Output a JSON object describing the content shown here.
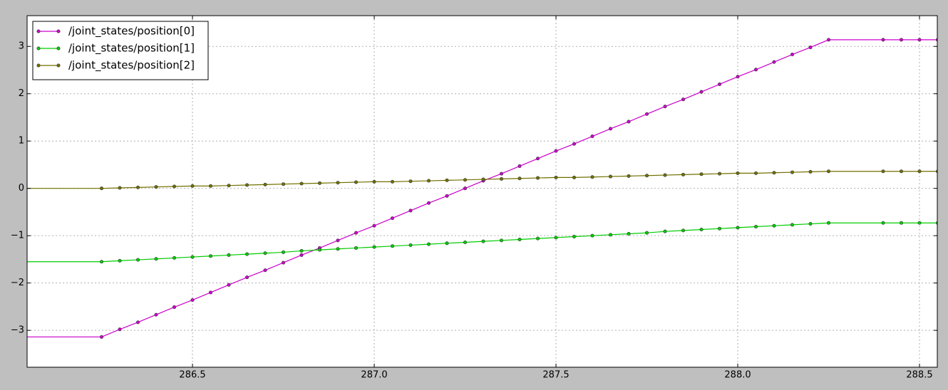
{
  "chart_data": {
    "type": "line",
    "x": [
      286.0,
      286.25,
      286.3,
      286.35,
      286.4,
      286.45,
      286.5,
      286.55,
      286.6,
      286.65,
      286.7,
      286.75,
      286.8,
      286.85,
      286.9,
      286.95,
      287.0,
      287.05,
      287.1,
      287.15,
      287.2,
      287.25,
      287.3,
      287.35,
      287.4,
      287.45,
      287.5,
      287.55,
      287.6,
      287.65,
      287.7,
      287.75,
      287.8,
      287.85,
      287.9,
      287.95,
      288.0,
      288.05,
      288.1,
      288.15,
      288.2,
      288.25,
      288.4,
      288.45,
      288.5,
      288.55
    ],
    "series": [
      {
        "name": "/joint_states/position[0]",
        "color": "#cc00cc",
        "values": [
          -3.14,
          -3.14,
          -2.98,
          -2.83,
          -2.67,
          -2.51,
          -2.36,
          -2.2,
          -2.04,
          -1.88,
          -1.73,
          -1.57,
          -1.41,
          -1.26,
          -1.1,
          -0.94,
          -0.79,
          -0.63,
          -0.47,
          -0.31,
          -0.16,
          0.0,
          0.16,
          0.31,
          0.47,
          0.63,
          0.79,
          0.94,
          1.1,
          1.26,
          1.41,
          1.57,
          1.73,
          1.88,
          2.04,
          2.2,
          2.36,
          2.51,
          2.67,
          2.83,
          2.98,
          3.14,
          3.14,
          3.14,
          3.14,
          3.14
        ]
      },
      {
        "name": "/joint_states/position[1]",
        "color": "#00cc00",
        "values": [
          -1.55,
          -1.55,
          -1.53,
          -1.51,
          -1.49,
          -1.47,
          -1.45,
          -1.43,
          -1.41,
          -1.39,
          -1.37,
          -1.35,
          -1.32,
          -1.3,
          -1.28,
          -1.26,
          -1.24,
          -1.22,
          -1.2,
          -1.18,
          -1.16,
          -1.14,
          -1.12,
          -1.1,
          -1.08,
          -1.06,
          -1.04,
          -1.02,
          -1.0,
          -0.98,
          -0.96,
          -0.94,
          -0.91,
          -0.89,
          -0.87,
          -0.85,
          -0.83,
          -0.81,
          -0.79,
          -0.77,
          -0.75,
          -0.73,
          -0.73,
          -0.73,
          -0.73,
          -0.73
        ]
      },
      {
        "name": "/joint_states/position[2]",
        "color": "#707000",
        "values": [
          0,
          0,
          0.01,
          0.02,
          0.03,
          0.04,
          0.05,
          0.05,
          0.06,
          0.07,
          0.08,
          0.09,
          0.1,
          0.11,
          0.12,
          0.13,
          0.14,
          0.14,
          0.15,
          0.16,
          0.17,
          0.18,
          0.19,
          0.2,
          0.21,
          0.22,
          0.23,
          0.23,
          0.24,
          0.25,
          0.26,
          0.27,
          0.28,
          0.29,
          0.3,
          0.31,
          0.32,
          0.32,
          0.33,
          0.34,
          0.35,
          0.36,
          0.36,
          0.36,
          0.36,
          0.36
        ]
      }
    ],
    "xlim": [
      286.045,
      288.549
    ],
    "xticks": [
      286.5,
      {
        "value": 287,
        "label": "287.0"
      },
      287.5,
      {
        "value": 288,
        "label": "288.0"
      },
      288.5
    ],
    "ylim": [
      -3.78,
      3.65
    ],
    "yticks": [
      {
        "value": -3,
        "label": "−3"
      },
      {
        "value": -2,
        "label": "−2"
      },
      {
        "value": -1,
        "label": "−1"
      },
      0,
      1,
      2,
      3
    ],
    "grid": true,
    "legend": "upper-left"
  }
}
